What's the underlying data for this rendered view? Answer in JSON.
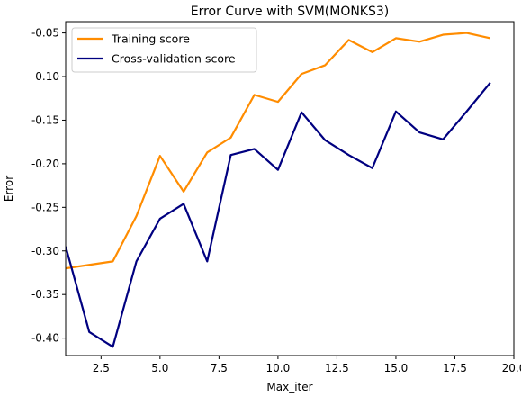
{
  "chart_data": {
    "type": "line",
    "title": "Error Curve with SVM(MONKS3)",
    "xlabel": "Max_iter",
    "ylabel": "Error",
    "xlim": [
      1,
      20
    ],
    "ylim": [
      -0.42,
      -0.037
    ],
    "xticks": [
      2.5,
      5.0,
      7.5,
      10.0,
      12.5,
      15.0,
      17.5,
      20.0
    ],
    "xtick_labels": [
      "2.5",
      "5.0",
      "7.5",
      "10.0",
      "12.5",
      "15.0",
      "17.5",
      "20.0"
    ],
    "yticks": [
      -0.4,
      -0.35,
      -0.3,
      -0.25,
      -0.2,
      -0.15,
      -0.1,
      -0.05
    ],
    "ytick_labels": [
      "-0.40",
      "-0.35",
      "-0.30",
      "-0.25",
      "-0.20",
      "-0.15",
      "-0.10",
      "-0.05"
    ],
    "grid": false,
    "legend_position": "top-left",
    "x": [
      1,
      2,
      3,
      4,
      5,
      6,
      7,
      8,
      9,
      10,
      11,
      12,
      13,
      14,
      15,
      16,
      17,
      18,
      19
    ],
    "series": [
      {
        "name": "Training score",
        "color": "#ff8c00",
        "values": [
          -0.32,
          -0.316,
          -0.312,
          -0.26,
          -0.191,
          -0.232,
          -0.187,
          -0.17,
          -0.121,
          -0.129,
          -0.097,
          -0.087,
          -0.058,
          -0.072,
          -0.056,
          -0.06,
          -0.052,
          -0.05,
          -0.056
        ]
      },
      {
        "name": "Cross-validation score",
        "color": "#000080",
        "values": [
          -0.295,
          -0.393,
          -0.41,
          -0.312,
          -0.263,
          -0.246,
          -0.312,
          -0.19,
          -0.183,
          -0.207,
          -0.141,
          -0.173,
          -0.19,
          -0.205,
          -0.14,
          -0.164,
          -0.172,
          -0.14,
          -0.107
        ]
      }
    ]
  }
}
